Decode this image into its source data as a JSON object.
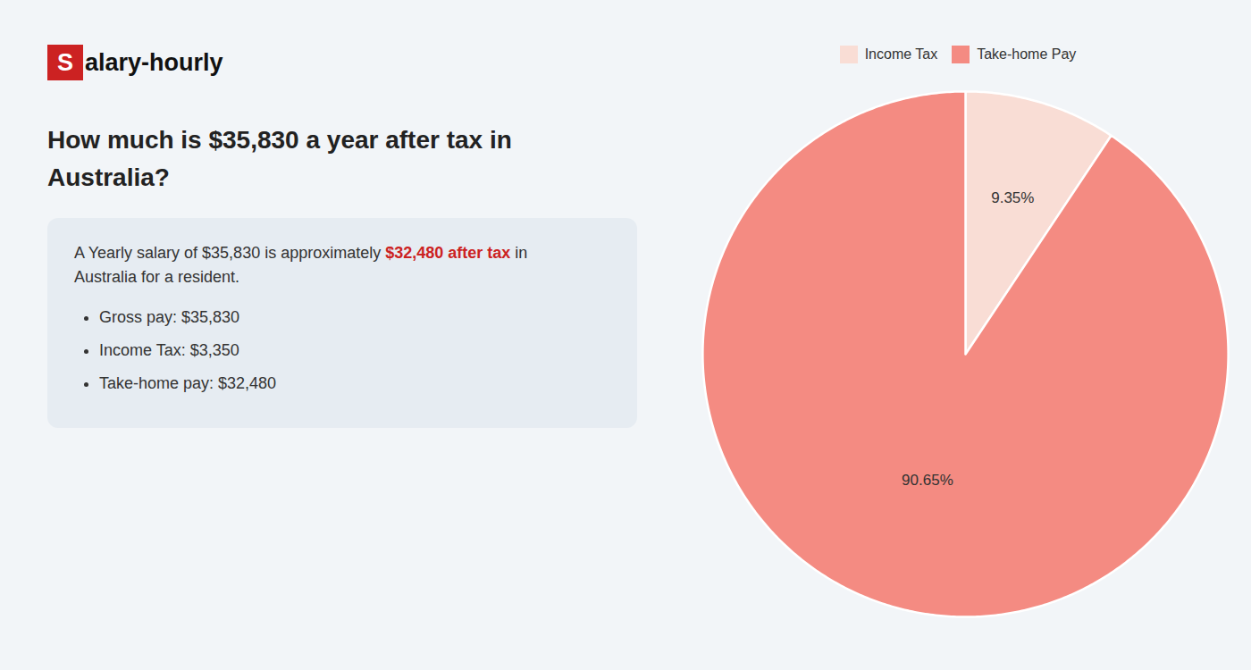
{
  "chart_data": {
    "type": "pie",
    "title": "How much is $35,830 a year after tax in\nAustralia?",
    "categories": [
      "Income Tax",
      "Take-home Pay"
    ],
    "values": [
      9.35,
      90.65
    ],
    "value_labels": [
      "9.35%",
      "90.65%"
    ],
    "colors": [
      "#f9ddd5",
      "#f48b82"
    ],
    "data_labels": true,
    "legend": "top",
    "annotations": {
      "logo": {
        "box": "S",
        "text": "alary-hourly",
        "color": "#cc2222"
      },
      "paragraph": [
        {
          "text": "A Yearly salary of $35,830 is approximately "
        },
        {
          "text": "$32,480 after tax",
          "color": "#cc2222"
        },
        {
          "text": " in"
        }
      ],
      "paragraph_line2": "Australia for a resident.",
      "bullets": [
        "Gross pay: $35,830",
        "Income Tax: $3,350",
        "Take-home pay: $32,480"
      ]
    }
  }
}
